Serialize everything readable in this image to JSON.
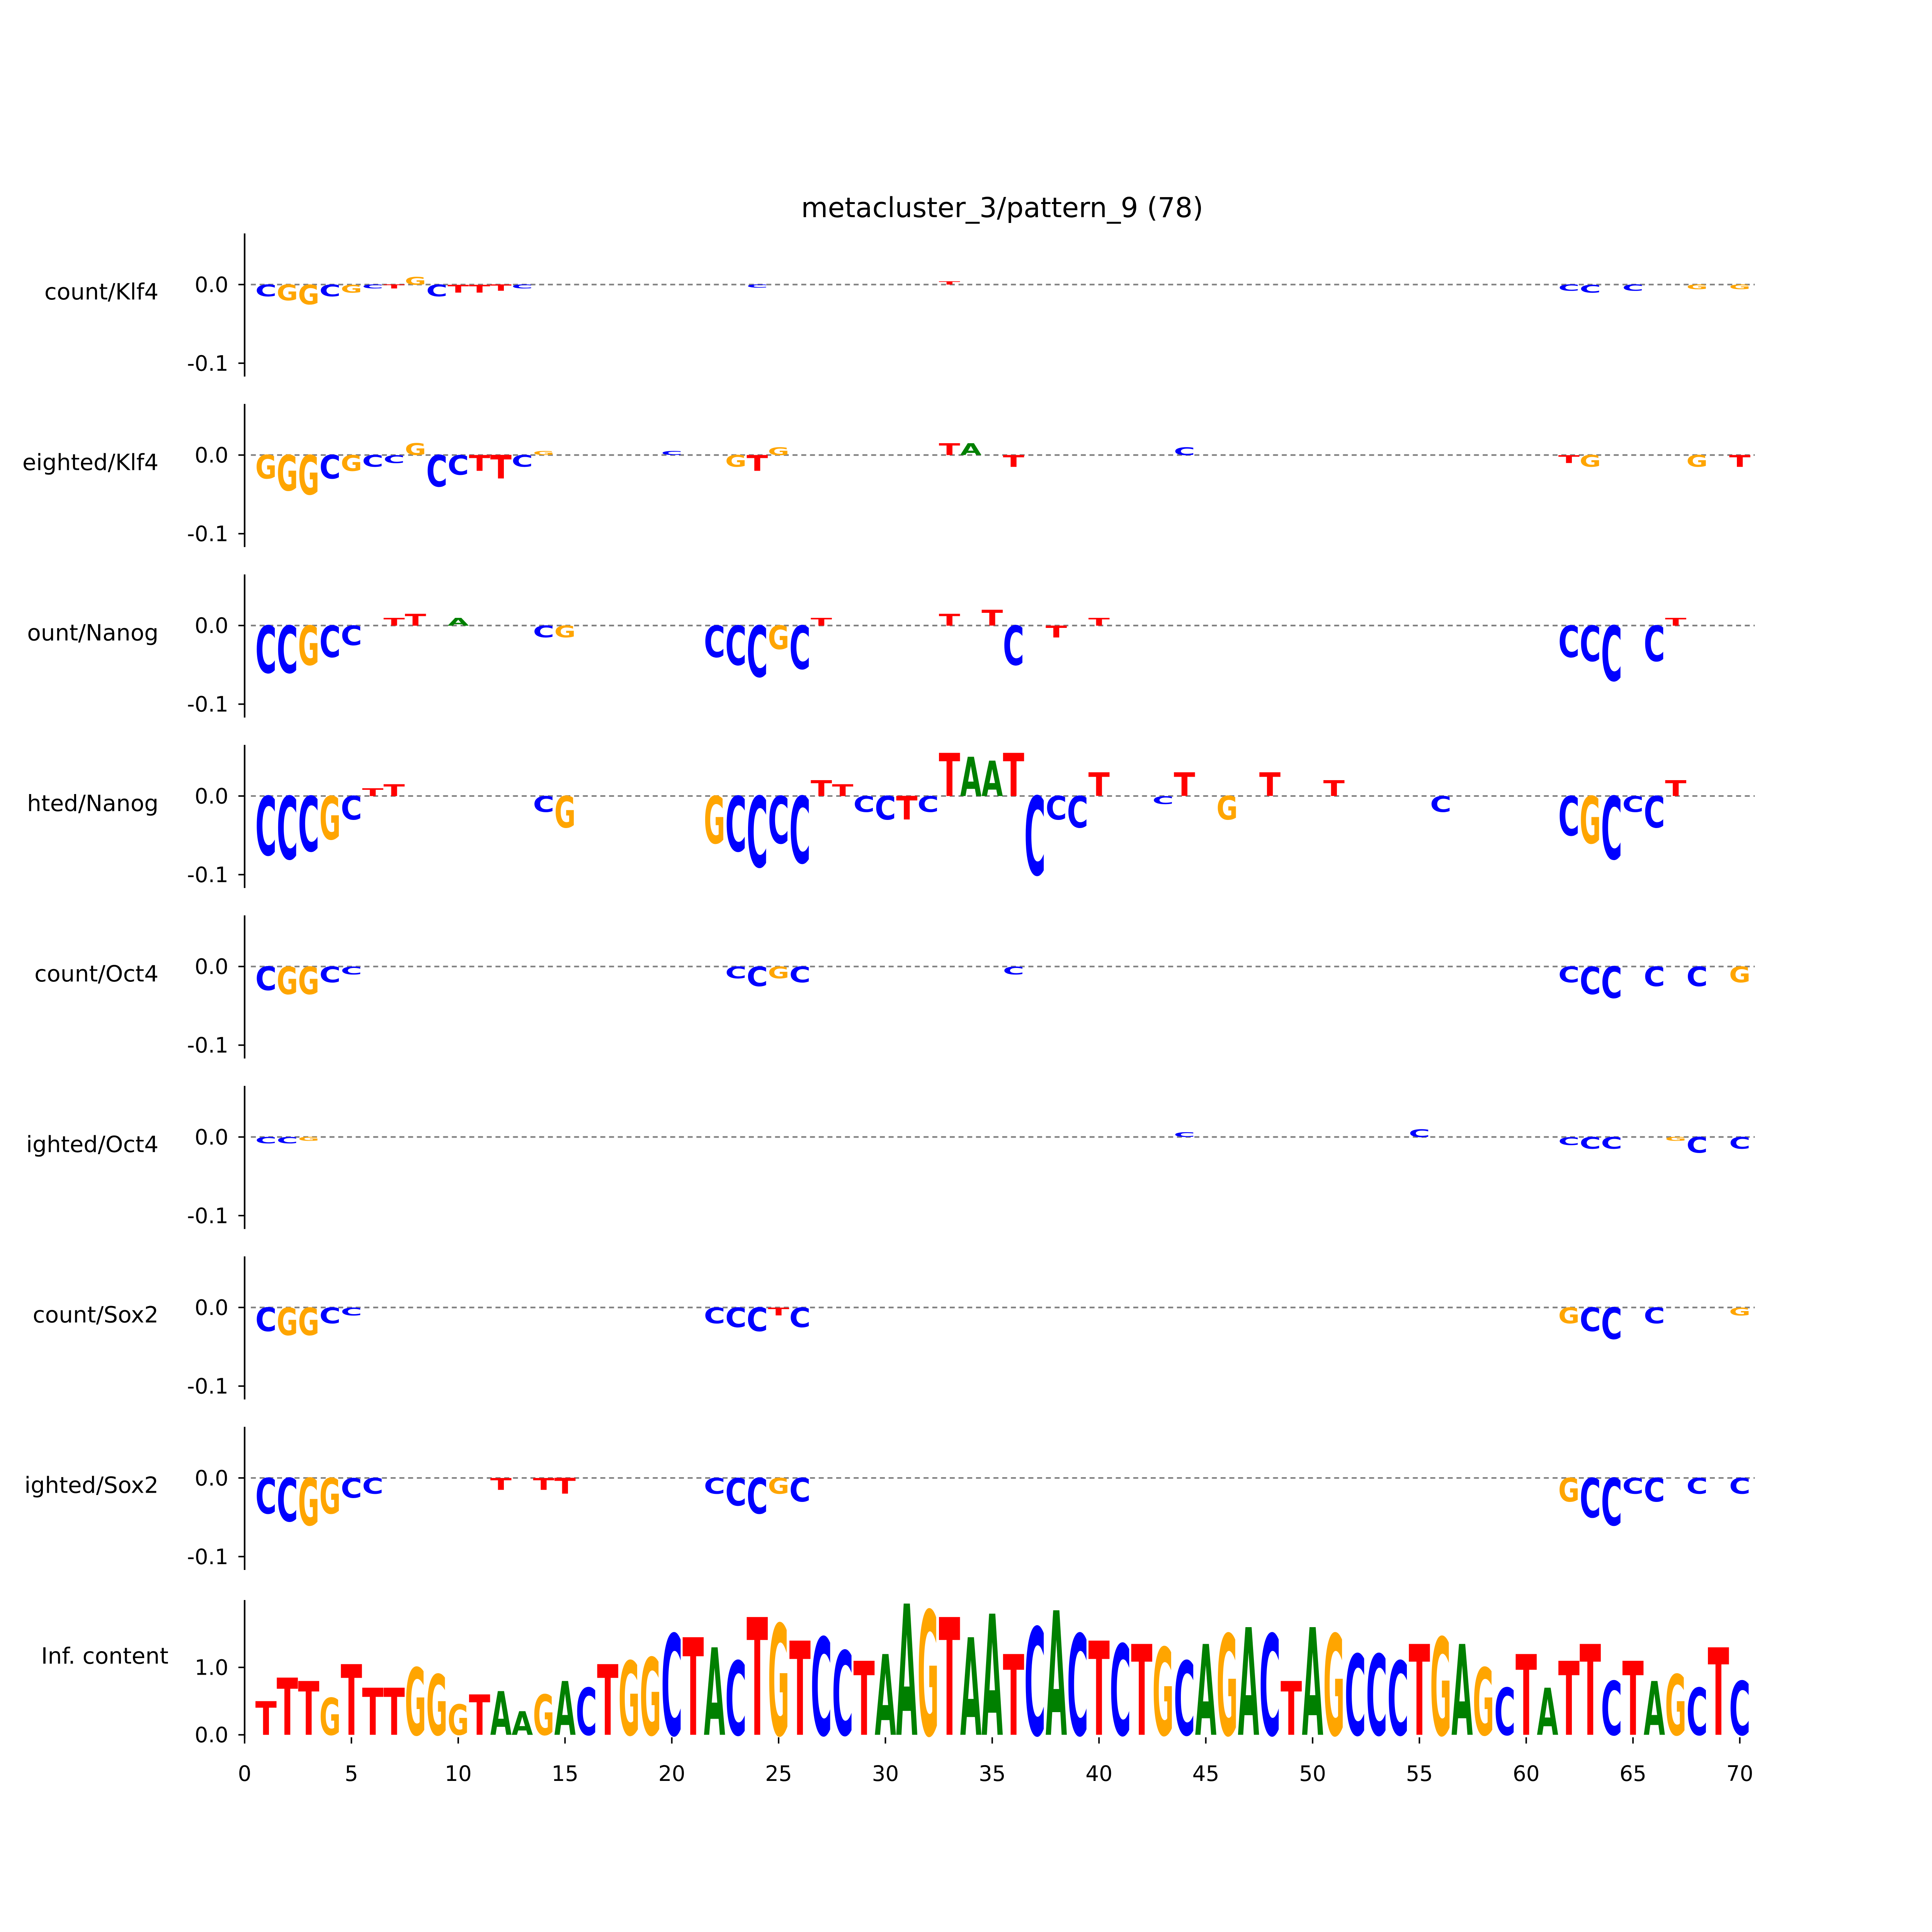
{
  "chart_data": {
    "type": "sequence-logo",
    "title": "metacluster_3/pattern_9 (78)",
    "colors": {
      "A": "#008000",
      "C": "#0000ff",
      "G": "#ffa500",
      "T": "#ff0000"
    },
    "x_ticks": [
      "0",
      "5",
      "10",
      "15",
      "20",
      "25",
      "30",
      "35",
      "40",
      "45",
      "50",
      "55",
      "60",
      "65",
      "70"
    ],
    "xlim": [
      0,
      70
    ],
    "tracks": [
      {
        "label": "count/Klf4",
        "ylim": [
          -0.117,
          0.065
        ],
        "y_ticks": [
          "0.0",
          "-0.1"
        ],
        "y_tick_values": [
          0,
          -0.1
        ],
        "points": [
          [
            1,
            "C",
            -0.015
          ],
          [
            2,
            "G",
            -0.02
          ],
          [
            3,
            "G",
            -0.025
          ],
          [
            4,
            "C",
            -0.015
          ],
          [
            5,
            "G",
            -0.01
          ],
          [
            6,
            "C",
            -0.005
          ],
          [
            7,
            "T",
            -0.005
          ],
          [
            8,
            "G",
            0.01
          ],
          [
            9,
            "C",
            -0.015
          ],
          [
            10,
            "T",
            -0.01
          ],
          [
            11,
            "T",
            -0.01
          ],
          [
            12,
            "T",
            -0.008
          ],
          [
            13,
            "C",
            -0.005
          ],
          [
            24,
            "C",
            -0.004
          ],
          [
            33,
            "T",
            0.004
          ],
          [
            62,
            "C",
            -0.008
          ],
          [
            63,
            "C",
            -0.01
          ],
          [
            65,
            "C",
            -0.008
          ],
          [
            68,
            "G",
            -0.006
          ],
          [
            70,
            "G",
            -0.006
          ]
        ]
      },
      {
        "label": "eighted/Klf4",
        "ylim": [
          -0.117,
          0.065
        ],
        "y_ticks": [
          "0.0",
          "-0.1"
        ],
        "y_tick_values": [
          0,
          -0.1
        ],
        "points": [
          [
            1,
            "G",
            -0.03
          ],
          [
            2,
            "G",
            -0.045
          ],
          [
            3,
            "G",
            -0.05
          ],
          [
            4,
            "C",
            -0.03
          ],
          [
            5,
            "G",
            -0.02
          ],
          [
            6,
            "C",
            -0.015
          ],
          [
            7,
            "C",
            -0.01
          ],
          [
            8,
            "G",
            0.015
          ],
          [
            9,
            "C",
            -0.04
          ],
          [
            10,
            "C",
            -0.025
          ],
          [
            11,
            "T",
            -0.02
          ],
          [
            12,
            "T",
            -0.03
          ],
          [
            13,
            "C",
            -0.015
          ],
          [
            14,
            "G",
            0.005
          ],
          [
            20,
            "C",
            0.005
          ],
          [
            23,
            "G",
            -0.015
          ],
          [
            24,
            "T",
            -0.02
          ],
          [
            25,
            "G",
            0.01
          ],
          [
            33,
            "T",
            0.015
          ],
          [
            34,
            "A",
            0.015
          ],
          [
            36,
            "T",
            -0.015
          ],
          [
            44,
            "C",
            0.01
          ],
          [
            62,
            "T",
            -0.01
          ],
          [
            63,
            "G",
            -0.015
          ],
          [
            68,
            "G",
            -0.015
          ],
          [
            70,
            "T",
            -0.015
          ]
        ]
      },
      {
        "label": "ount/Nanog",
        "ylim": [
          -0.117,
          0.065
        ],
        "y_ticks": [
          "0.0",
          "-0.1"
        ],
        "y_tick_values": [
          0,
          -0.1
        ],
        "points": [
          [
            1,
            "C",
            -0.06
          ],
          [
            2,
            "C",
            -0.06
          ],
          [
            3,
            "G",
            -0.05
          ],
          [
            4,
            "C",
            -0.04
          ],
          [
            5,
            "C",
            -0.025
          ],
          [
            7,
            "T",
            0.01
          ],
          [
            8,
            "T",
            0.015
          ],
          [
            10,
            "A",
            0.01
          ],
          [
            14,
            "C",
            -0.015
          ],
          [
            15,
            "G",
            -0.015
          ],
          [
            22,
            "C",
            -0.04
          ],
          [
            23,
            "C",
            -0.05
          ],
          [
            24,
            "C",
            -0.065
          ],
          [
            25,
            "G",
            -0.03
          ],
          [
            26,
            "C",
            -0.055
          ],
          [
            27,
            "T",
            0.01
          ],
          [
            33,
            "T",
            0.015
          ],
          [
            35,
            "T",
            0.02
          ],
          [
            36,
            "C",
            -0.05
          ],
          [
            38,
            "T",
            -0.015
          ],
          [
            40,
            "T",
            0.01
          ],
          [
            62,
            "C",
            -0.04
          ],
          [
            63,
            "C",
            -0.045
          ],
          [
            64,
            "C",
            -0.07
          ],
          [
            66,
            "C",
            -0.045
          ],
          [
            67,
            "T",
            0.01
          ]
        ]
      },
      {
        "label": "hted/Nanog",
        "ylim": [
          -0.117,
          0.065
        ],
        "y_ticks": [
          "0.0",
          "-0.1"
        ],
        "y_tick_values": [
          0,
          -0.1
        ],
        "points": [
          [
            1,
            "C",
            -0.075
          ],
          [
            2,
            "C",
            -0.08
          ],
          [
            3,
            "C",
            -0.07
          ],
          [
            4,
            "G",
            -0.055
          ],
          [
            5,
            "C",
            -0.03
          ],
          [
            6,
            "T",
            0.01
          ],
          [
            7,
            "T",
            0.015
          ],
          [
            14,
            "C",
            -0.02
          ],
          [
            15,
            "G",
            -0.04
          ],
          [
            22,
            "G",
            -0.06
          ],
          [
            23,
            "C",
            -0.07
          ],
          [
            24,
            "C",
            -0.09
          ],
          [
            25,
            "C",
            -0.06
          ],
          [
            26,
            "C",
            -0.085
          ],
          [
            27,
            "T",
            0.02
          ],
          [
            28,
            "T",
            0.015
          ],
          [
            29,
            "C",
            -0.02
          ],
          [
            30,
            "C",
            -0.03
          ],
          [
            31,
            "T",
            -0.03
          ],
          [
            32,
            "C",
            -0.02
          ],
          [
            33,
            "T",
            0.055
          ],
          [
            34,
            "A",
            0.05
          ],
          [
            35,
            "A",
            0.045
          ],
          [
            36,
            "T",
            0.055
          ],
          [
            37,
            "C",
            -0.1
          ],
          [
            38,
            "C",
            -0.03
          ],
          [
            39,
            "C",
            -0.04
          ],
          [
            40,
            "T",
            0.03
          ],
          [
            43,
            "C",
            -0.01
          ],
          [
            44,
            "T",
            0.03
          ],
          [
            46,
            "G",
            -0.03
          ],
          [
            48,
            "T",
            0.03
          ],
          [
            51,
            "T",
            0.02
          ],
          [
            56,
            "C",
            -0.02
          ],
          [
            62,
            "C",
            -0.05
          ],
          [
            63,
            "G",
            -0.06
          ],
          [
            64,
            "C",
            -0.08
          ],
          [
            65,
            "C",
            -0.02
          ],
          [
            66,
            "C",
            -0.04
          ],
          [
            67,
            "T",
            0.02
          ]
        ]
      },
      {
        "label": "count/Oct4",
        "ylim": [
          -0.117,
          0.065
        ],
        "y_ticks": [
          "0.0",
          "-0.1"
        ],
        "y_tick_values": [
          0,
          -0.1
        ],
        "points": [
          [
            1,
            "C",
            -0.03
          ],
          [
            2,
            "G",
            -0.035
          ],
          [
            3,
            "G",
            -0.035
          ],
          [
            4,
            "C",
            -0.02
          ],
          [
            5,
            "C",
            -0.01
          ],
          [
            23,
            "C",
            -0.015
          ],
          [
            24,
            "C",
            -0.025
          ],
          [
            25,
            "G",
            -0.015
          ],
          [
            26,
            "C",
            -0.02
          ],
          [
            36,
            "C",
            -0.01
          ],
          [
            62,
            "C",
            -0.02
          ],
          [
            63,
            "C",
            -0.035
          ],
          [
            64,
            "C",
            -0.04
          ],
          [
            66,
            "C",
            -0.025
          ],
          [
            68,
            "C",
            -0.025
          ],
          [
            70,
            "G",
            -0.02
          ]
        ]
      },
      {
        "label": "ighted/Oct4",
        "ylim": [
          -0.117,
          0.065
        ],
        "y_ticks": [
          "0.0",
          "-0.1"
        ],
        "y_tick_values": [
          0,
          -0.1
        ],
        "points": [
          [
            1,
            "C",
            -0.008
          ],
          [
            2,
            "C",
            -0.008
          ],
          [
            3,
            "G",
            -0.005
          ],
          [
            44,
            "C",
            0.006
          ],
          [
            55,
            "C",
            0.01
          ],
          [
            62,
            "C",
            -0.01
          ],
          [
            63,
            "C",
            -0.015
          ],
          [
            64,
            "C",
            -0.015
          ],
          [
            67,
            "G",
            -0.005
          ],
          [
            68,
            "C",
            -0.02
          ],
          [
            70,
            "C",
            -0.015
          ]
        ]
      },
      {
        "label": "count/Sox2",
        "ylim": [
          -0.117,
          0.065
        ],
        "y_ticks": [
          "0.0",
          "-0.1"
        ],
        "y_tick_values": [
          0,
          -0.1
        ],
        "points": [
          [
            1,
            "C",
            -0.03
          ],
          [
            2,
            "G",
            -0.035
          ],
          [
            3,
            "G",
            -0.035
          ],
          [
            4,
            "C",
            -0.02
          ],
          [
            5,
            "C",
            -0.01
          ],
          [
            22,
            "C",
            -0.02
          ],
          [
            23,
            "C",
            -0.025
          ],
          [
            24,
            "C",
            -0.03
          ],
          [
            25,
            "T",
            -0.01
          ],
          [
            26,
            "C",
            -0.025
          ],
          [
            62,
            "G",
            -0.02
          ],
          [
            63,
            "C",
            -0.03
          ],
          [
            64,
            "C",
            -0.04
          ],
          [
            66,
            "C",
            -0.02
          ],
          [
            70,
            "G",
            -0.01
          ]
        ]
      },
      {
        "label": "ighted/Sox2",
        "ylim": [
          -0.117,
          0.065
        ],
        "y_ticks": [
          "0.0",
          "-0.1"
        ],
        "y_tick_values": [
          0,
          -0.1
        ],
        "points": [
          [
            1,
            "C",
            -0.045
          ],
          [
            2,
            "C",
            -0.055
          ],
          [
            3,
            "G",
            -0.06
          ],
          [
            4,
            "G",
            -0.045
          ],
          [
            5,
            "C",
            -0.025
          ],
          [
            6,
            "C",
            -0.02
          ],
          [
            12,
            "T",
            -0.015
          ],
          [
            14,
            "T",
            -0.015
          ],
          [
            15,
            "T",
            -0.02
          ],
          [
            22,
            "C",
            -0.02
          ],
          [
            23,
            "C",
            -0.035
          ],
          [
            24,
            "C",
            -0.045
          ],
          [
            25,
            "G",
            -0.02
          ],
          [
            26,
            "C",
            -0.03
          ],
          [
            62,
            "G",
            -0.03
          ],
          [
            63,
            "C",
            -0.05
          ],
          [
            64,
            "C",
            -0.06
          ],
          [
            65,
            "C",
            -0.02
          ],
          [
            66,
            "C",
            -0.03
          ],
          [
            68,
            "C",
            -0.02
          ],
          [
            70,
            "C",
            -0.02
          ]
        ]
      }
    ],
    "info_content": {
      "label": "Inf. content",
      "ylim": [
        0,
        2.0
      ],
      "y_ticks": [
        "0.0",
        "1.0"
      ],
      "y_tick_values": [
        0,
        1.0
      ],
      "consensus": "TTTGTTTGGGTAAGACTGGCTACTGTCCTAAGTAATCACTCTGCAGACTAGCCCTGAGCTATTCTAGCTC",
      "bits": [
        0.5,
        0.85,
        0.8,
        0.55,
        1.05,
        0.7,
        0.7,
        1.0,
        0.9,
        0.45,
        0.6,
        0.65,
        0.35,
        0.6,
        0.8,
        0.7,
        1.05,
        1.1,
        1.15,
        1.5,
        1.45,
        1.3,
        1.1,
        1.75,
        1.65,
        1.4,
        1.45,
        1.25,
        1.1,
        1.2,
        1.95,
        1.85,
        1.75,
        1.45,
        1.8,
        1.2,
        1.6,
        1.85,
        1.5,
        1.4,
        1.35,
        1.35,
        1.3,
        1.1,
        1.35,
        1.5,
        1.6,
        1.5,
        0.8,
        1.6,
        1.5,
        1.2,
        1.2,
        1.1,
        1.35,
        1.45,
        1.35,
        1.0,
        0.7,
        1.2,
        0.7,
        1.1,
        1.35,
        0.8,
        1.1,
        0.8,
        0.9,
        0.7,
        1.3,
        0.8
      ]
    }
  }
}
